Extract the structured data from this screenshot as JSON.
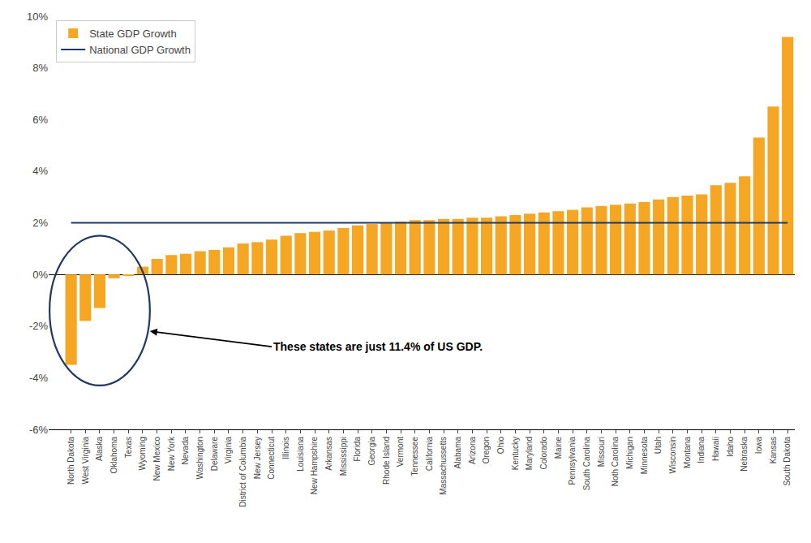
{
  "chart_data": {
    "type": "bar",
    "categories": [
      "North Dakota",
      "West Virginia",
      "Alaska",
      "Oklahoma",
      "Texas",
      "Wyoming",
      "New Mexico",
      "New York",
      "Nevada",
      "Washington",
      "Delaware",
      "Virginia",
      "District of Columbia",
      "New Jersey",
      "Connecticut",
      "Illinois",
      "Louisiana",
      "New Hampshire",
      "Arkansas",
      "Mississippi",
      "Florida",
      "Georgia",
      "Rhode Island",
      "Vermont",
      "Tennessee",
      "California",
      "Massachussetts",
      "Alabama",
      "Arizona",
      "Oregon",
      "Ohio",
      "Kentucky",
      "Maryland",
      "Colorado",
      "Maine",
      "Pennsylvania",
      "South Carolina",
      "Missouri",
      "Noth Carolina",
      "Michigan",
      "Minnesota",
      "Utah",
      "Wisconsin",
      "Montana",
      "Indiana",
      "Hawaii",
      "Idaho",
      "Nebraska",
      "Iowa",
      "Kansas",
      "South Dakota"
    ],
    "series": [
      {
        "name": "State GDP Growth",
        "type": "bar",
        "color": "#F5A623",
        "values": [
          -3.5,
          -1.8,
          -1.3,
          -0.15,
          -0.05,
          0.3,
          0.6,
          0.75,
          0.8,
          0.9,
          0.95,
          1.05,
          1.2,
          1.25,
          1.35,
          1.5,
          1.6,
          1.65,
          1.7,
          1.8,
          1.9,
          1.95,
          2.0,
          2.05,
          2.1,
          2.1,
          2.15,
          2.15,
          2.2,
          2.2,
          2.25,
          2.3,
          2.35,
          2.4,
          2.45,
          2.5,
          2.6,
          2.65,
          2.7,
          2.75,
          2.8,
          2.9,
          3.0,
          3.05,
          3.1,
          3.45,
          3.55,
          3.8,
          5.3,
          6.5,
          9.2
        ]
      },
      {
        "name": "National GDP Growth",
        "type": "line",
        "color": "#1f3864",
        "values": [
          2.0,
          2.0,
          2.0,
          2.0,
          2.0,
          2.0,
          2.0,
          2.0,
          2.0,
          2.0,
          2.0,
          2.0,
          2.0,
          2.0,
          2.0,
          2.0,
          2.0,
          2.0,
          2.0,
          2.0,
          2.0,
          2.0,
          2.0,
          2.0,
          2.0,
          2.0,
          2.0,
          2.0,
          2.0,
          2.0,
          2.0,
          2.0,
          2.0,
          2.0,
          2.0,
          2.0,
          2.0,
          2.0,
          2.0,
          2.0,
          2.0,
          2.0,
          2.0,
          2.0,
          2.0,
          2.0,
          2.0,
          2.0,
          2.0,
          2.0,
          2.0
        ]
      }
    ],
    "annotations": [
      "These states are just 11.4% of US GDP."
    ],
    "ylim": [
      -6,
      10
    ],
    "yticks": [
      {
        "value": -6,
        "label": "-6%"
      },
      {
        "value": -4,
        "label": "-4%"
      },
      {
        "value": -2,
        "label": "-2%"
      },
      {
        "value": 0,
        "label": "0%"
      },
      {
        "value": 2,
        "label": "2%"
      },
      {
        "value": 4,
        "label": "4%"
      },
      {
        "value": 6,
        "label": "6%"
      },
      {
        "value": 8,
        "label": "8%"
      },
      {
        "value": 10,
        "label": "10%"
      }
    ],
    "grid": false,
    "legend": "upper left"
  }
}
